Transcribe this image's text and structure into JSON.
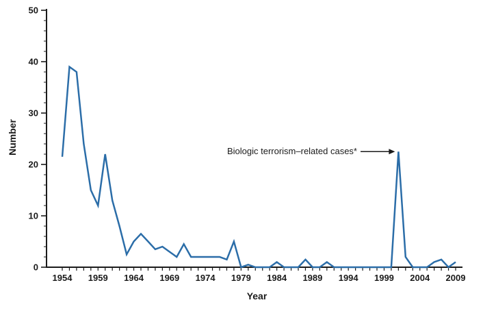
{
  "chart_data": {
    "type": "line",
    "title": "",
    "xlabel": "Year",
    "ylabel": "Number",
    "xlim": [
      1954,
      2009
    ],
    "ylim": [
      0,
      50
    ],
    "yticks": [
      0,
      10,
      20,
      30,
      40,
      50
    ],
    "xticks": [
      1954,
      1959,
      1964,
      1969,
      1974,
      1979,
      1984,
      1989,
      1994,
      1999,
      2004,
      2009
    ],
    "x": [
      1954,
      1955,
      1956,
      1957,
      1958,
      1959,
      1960,
      1961,
      1962,
      1963,
      1964,
      1965,
      1966,
      1967,
      1968,
      1969,
      1970,
      1971,
      1972,
      1973,
      1974,
      1975,
      1976,
      1977,
      1978,
      1979,
      1980,
      1981,
      1982,
      1983,
      1984,
      1985,
      1986,
      1987,
      1988,
      1989,
      1990,
      1991,
      1992,
      1993,
      1994,
      1995,
      1996,
      1997,
      1998,
      1999,
      2000,
      2001,
      2002,
      2003,
      2004,
      2005,
      2006,
      2007,
      2008,
      2009
    ],
    "values": [
      21.5,
      39,
      38,
      24,
      15,
      12,
      22,
      13,
      8,
      2.5,
      5,
      6.5,
      5,
      3.5,
      4,
      3,
      2,
      4.5,
      2,
      2,
      2,
      2,
      2,
      1.5,
      5,
      0,
      0.5,
      0,
      0,
      0,
      1,
      0,
      0,
      0,
      1.5,
      0,
      0,
      1,
      0,
      0,
      0,
      0,
      0,
      0,
      0,
      0,
      0,
      22.5,
      2,
      0,
      0,
      0,
      1,
      1.5,
      0,
      1
    ],
    "line_color": "#2b6da8",
    "axis_color": "#1a1a1a",
    "grid": "off",
    "legend": "none",
    "annotation": {
      "text": "Biologic terrorism–related cases*",
      "arrow_to_year": 2001,
      "arrow_to_value": 22.5
    }
  }
}
